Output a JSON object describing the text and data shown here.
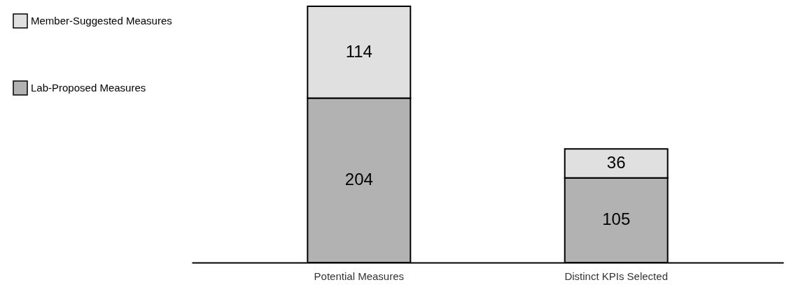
{
  "chart_data": {
    "type": "bar",
    "stacked": true,
    "data_labels": true,
    "legend": "left",
    "grid": false,
    "categories": [
      "Potential Measures",
      "Distinct KPIs Selected"
    ],
    "series": [
      {
        "name": "Lab-Proposed Measures",
        "color": "#b2b2b2",
        "values": [
          204,
          105
        ]
      },
      {
        "name": "Member-Suggested Measures",
        "color": "#e0e0e0",
        "values": [
          114,
          36
        ]
      }
    ]
  }
}
